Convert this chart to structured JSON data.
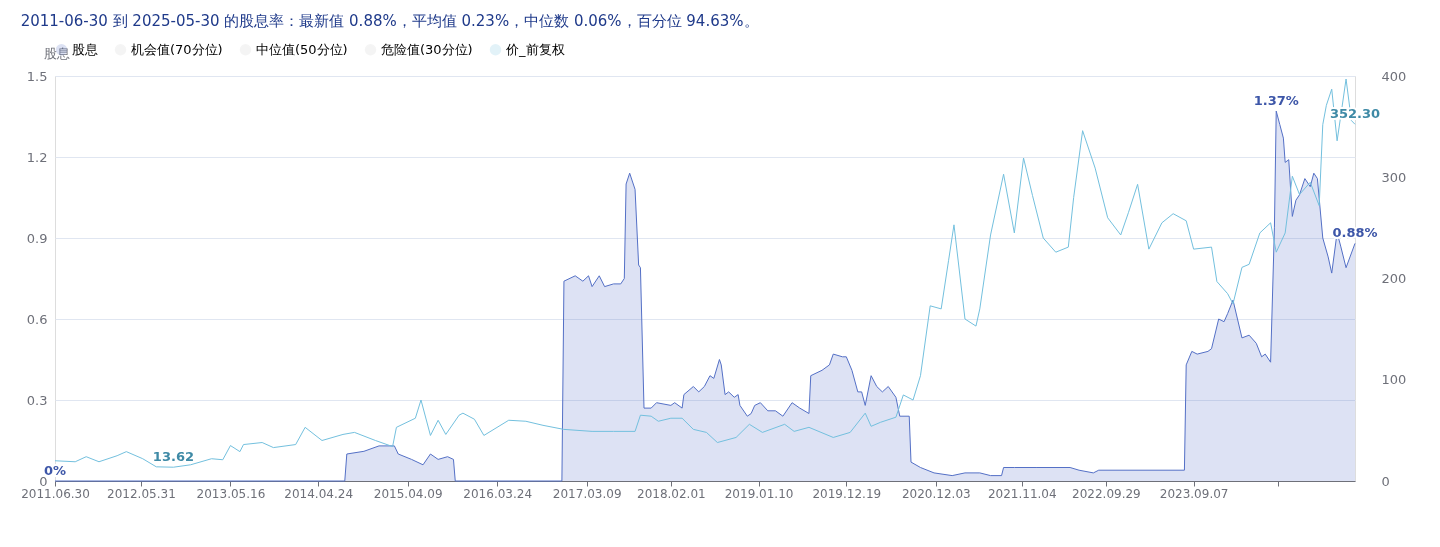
{
  "chart_data": {
    "type": "line",
    "title": "2011-06-30 到 2025-05-30 的股息率：最新值 0.88%，平均值 0.23%，中位数 0.06%，百分位 94.63%。",
    "ylabel": "股息",
    "xlim": [
      "2011-06-30",
      "2025-05-30"
    ],
    "xticks": [
      {
        "value": "2011-06-30",
        "label": "2011.06.30"
      },
      {
        "value": "2012-05-31",
        "label": "2012.05.31"
      },
      {
        "value": "2013-05-16",
        "label": "2013.05.16"
      },
      {
        "value": "2014-04-24",
        "label": "2014.04.24"
      },
      {
        "value": "2015-04-09",
        "label": "2015.04.09"
      },
      {
        "value": "2016-03-24",
        "label": "2016.03.24"
      },
      {
        "value": "2017-03-09",
        "label": "2017.03.09"
      },
      {
        "value": "2018-02-01",
        "label": "2018.02.01"
      },
      {
        "value": "2019-01-10",
        "label": "2019.01.10"
      },
      {
        "value": "2019-12-19",
        "label": "2019.12.19"
      },
      {
        "value": "2020-12-03",
        "label": "2020.12.03"
      },
      {
        "value": "2021-11-04",
        "label": "2021.11.04"
      },
      {
        "value": "2022-09-29",
        "label": "2022.09.29"
      },
      {
        "value": "2023-09-07",
        "label": "2023.09.07"
      },
      {
        "value": "2024-08-02",
        "label": null
      }
    ],
    "ylim": [
      0,
      1.5
    ],
    "yticks": [
      0,
      0.3,
      0.6,
      0.9,
      1.2,
      1.5
    ],
    "y2lim": [
      0,
      400
    ],
    "y2ticks": [
      0,
      100,
      200,
      300,
      400
    ],
    "grid": "y",
    "legend": "top",
    "series": [
      {
        "name": "股息",
        "type": "area",
        "color": "#5470c6",
        "x": [
          "2011-06-30",
          "2014-08-06",
          "2014-08-14",
          "2014-10-20",
          "2014-12-18",
          "2015-02-16",
          "2015-03-03",
          "2015-04-24",
          "2015-06-08",
          "2015-07-07",
          "2015-08-06",
          "2015-09-12",
          "2015-10-05",
          "2015-10-12",
          "2016-12-02",
          "2016-12-10",
          "2017-01-23",
          "2017-02-22",
          "2017-03-16",
          "2017-03-30",
          "2017-04-27",
          "2017-05-18",
          "2017-06-22",
          "2017-07-20",
          "2017-08-03",
          "2017-08-10",
          "2017-08-24",
          "2017-09-14",
          "2017-09-28",
          "2017-10-05",
          "2017-10-19",
          "2017-11-16",
          "2017-12-07",
          "2018-02-01",
          "2018-02-16",
          "2018-03-17",
          "2018-03-24",
          "2018-04-30",
          "2018-05-21",
          "2018-06-12",
          "2018-07-04",
          "2018-07-19",
          "2018-08-10",
          "2018-08-17",
          "2018-09-01",
          "2018-09-15",
          "2018-10-07",
          "2018-10-22",
          "2018-10-29",
          "2018-11-27",
          "2018-12-12",
          "2018-12-26",
          "2019-01-17",
          "2019-02-15",
          "2019-03-17",
          "2019-04-15",
          "2019-05-21",
          "2019-06-20",
          "2019-07-26",
          "2019-08-02",
          "2019-09-15",
          "2019-10-14",
          "2019-10-29",
          "2019-12-04",
          "2019-12-19",
          "2020-01-10",
          "2020-02-02",
          "2020-02-17",
          "2020-03-02",
          "2020-03-25",
          "2020-04-16",
          "2020-05-08",
          "2020-05-31",
          "2020-06-30",
          "2020-07-15",
          "2020-08-21",
          "2020-08-28",
          "2020-10-04",
          "2020-11-26",
          "2021-02-05",
          "2021-03-27",
          "2021-05-24",
          "2021-07-05",
          "2021-08-17",
          "2021-08-25",
          "2021-10-06",
          "2021-12-30",
          "2022-05-12",
          "2022-06-16",
          "2022-08-11",
          "2022-09-01",
          "2023-08-02",
          "2023-08-09",
          "2023-08-31",
          "2023-09-21",
          "2023-11-02",
          "2023-11-16",
          "2023-12-14",
          "2024-01-04",
          "2024-01-18",
          "2024-02-08",
          "2024-03-14",
          "2024-04-11",
          "2024-05-09",
          "2024-05-30",
          "2024-06-13",
          "2024-07-04",
          "2024-07-19",
          "2024-07-26",
          "2024-08-09",
          "2024-08-23",
          "2024-08-30",
          "2024-09-13",
          "2024-09-27",
          "2024-10-11",
          "2024-10-25",
          "2024-11-15",
          "2024-12-06",
          "2024-12-20",
          "2025-01-03",
          "2025-01-24",
          "2025-02-14",
          "2025-02-28",
          "2025-03-21",
          "2025-04-04",
          "2025-04-25",
          "2025-05-30"
        ],
        "values": [
          0,
          0,
          0.1,
          0.11,
          0.13,
          0.13,
          0.1,
          0.08,
          0.06,
          0.1,
          0.08,
          0.09,
          0.08,
          0,
          0,
          0.74,
          0.76,
          0.74,
          0.76,
          0.72,
          0.76,
          0.72,
          0.73,
          0.73,
          0.75,
          1.1,
          1.14,
          1.08,
          0.8,
          0.79,
          0.27,
          0.27,
          0.29,
          0.28,
          0.29,
          0.27,
          0.32,
          0.35,
          0.33,
          0.35,
          0.39,
          0.38,
          0.45,
          0.43,
          0.32,
          0.33,
          0.31,
          0.32,
          0.28,
          0.24,
          0.25,
          0.28,
          0.29,
          0.26,
          0.26,
          0.24,
          0.29,
          0.27,
          0.25,
          0.39,
          0.41,
          0.43,
          0.47,
          0.46,
          0.46,
          0.41,
          0.33,
          0.33,
          0.28,
          0.39,
          0.35,
          0.33,
          0.35,
          0.31,
          0.24,
          0.24,
          0.07,
          0.05,
          0.03,
          0.02,
          0.03,
          0.03,
          0.02,
          0.02,
          0.05,
          0.05,
          0.05,
          0.05,
          0.04,
          0.03,
          0.04,
          0.04,
          0.43,
          0.48,
          0.47,
          0.48,
          0.49,
          0.6,
          0.59,
          0.62,
          0.67,
          0.53,
          0.54,
          0.51,
          0.46,
          0.47,
          0.44,
          0.94,
          1.37,
          1.32,
          1.27,
          1.18,
          1.19,
          0.98,
          1.04,
          1.06,
          1.12,
          1.09,
          1.14,
          1.12,
          0.9,
          0.83,
          0.77,
          0.92,
          0.87,
          0.79,
          0.88
        ],
        "value_labels": [
          "0%",
          null,
          null,
          null,
          null,
          null,
          null,
          null,
          null,
          null,
          null,
          null,
          null,
          null,
          null,
          null,
          null,
          null,
          null,
          null,
          null,
          null,
          null,
          null,
          null,
          null,
          null,
          null,
          null,
          null,
          null,
          null,
          null,
          null,
          null,
          null,
          null,
          null,
          null,
          null,
          null,
          null,
          null,
          null,
          null,
          null,
          null,
          null,
          null,
          null,
          null,
          null,
          null,
          null,
          null,
          null,
          null,
          null,
          null,
          null,
          null,
          null,
          null,
          null,
          null,
          null,
          null,
          null,
          null,
          null,
          null,
          null,
          null,
          null,
          null,
          null,
          null,
          null,
          null,
          null,
          null,
          null,
          null,
          null,
          null,
          null,
          null,
          null,
          null,
          null,
          null,
          null,
          null,
          null,
          null,
          null,
          null,
          null,
          null,
          null,
          null,
          null,
          null,
          null,
          null,
          null,
          null,
          null,
          "1.37%",
          null,
          null,
          null,
          null,
          null,
          null,
          null,
          null,
          null,
          null,
          null,
          null,
          null,
          null,
          null,
          null,
          null,
          "0.88%"
        ]
      },
      {
        "name": "机会值(70分位)",
        "color": "#cccccc"
      },
      {
        "name": "中位值(50分位)",
        "color": "#cccccc"
      },
      {
        "name": "危险值(30分位)",
        "color": "#cccccc"
      },
      {
        "name": "价_前复权",
        "axis": "y2",
        "color": "#73c0de",
        "x": [
          "2011-06-30",
          "2011-09-17",
          "2011-10-30",
          "2011-12-19",
          "2012-02-28",
          "2012-04-04",
          "2012-06-07",
          "2012-07-30",
          "2012-10-05",
          "2012-12-11",
          "2013-03-03",
          "2013-04-16",
          "2013-05-16",
          "2013-06-22",
          "2013-07-06",
          "2013-09-17",
          "2013-10-31",
          "2014-01-26",
          "2014-03-04",
          "2014-05-09",
          "2014-07-30",
          "2014-09-13",
          "2014-12-04",
          "2015-02-09",
          "2015-02-24",
          "2015-05-09",
          "2015-05-31",
          "2015-07-07",
          "2015-08-06",
          "2015-09-05",
          "2015-10-27",
          "2015-11-11",
          "2015-12-26",
          "2016-02-01",
          "2016-05-08",
          "2016-07-14",
          "2016-09-19",
          "2016-12-09",
          "2017-03-30",
          "2017-06-22",
          "2017-09-14",
          "2017-10-05",
          "2017-11-16",
          "2017-12-14",
          "2018-02-01",
          "2018-03-17",
          "2018-04-30",
          "2018-06-20",
          "2018-08-02",
          "2018-10-14",
          "2018-12-05",
          "2019-01-25",
          "2019-04-22",
          "2019-05-29",
          "2019-07-26",
          "2019-10-29",
          "2020-01-03",
          "2020-03-02",
          "2020-03-25",
          "2020-05-01",
          "2020-06-30",
          "2020-07-29",
          "2020-09-05",
          "2020-10-04",
          "2020-11-11",
          "2020-12-24",
          "2021-01-22",
          "2021-02-12",
          "2021-03-27",
          "2021-05-09",
          "2021-05-24",
          "2021-07-05",
          "2021-08-25",
          "2021-10-06",
          "2021-11-11",
          "2021-12-16",
          "2022-01-27",
          "2022-03-17",
          "2022-05-05",
          "2022-05-26",
          "2022-06-30",
          "2022-08-18",
          "2022-10-06",
          "2022-11-26",
          "2022-12-26",
          "2023-01-31",
          "2023-03-16",
          "2023-05-06",
          "2023-06-19",
          "2023-08-09",
          "2023-09-07",
          "2023-11-16",
          "2023-12-07",
          "2024-01-18",
          "2024-02-08",
          "2024-03-14",
          "2024-04-11",
          "2024-05-23",
          "2024-07-04",
          "2024-07-26",
          "2024-08-30",
          "2024-09-27",
          "2024-10-25",
          "2024-12-06",
          "2025-01-10",
          "2025-01-24",
          "2025-02-07",
          "2025-02-28",
          "2025-03-21",
          "2025-04-04",
          "2025-04-25",
          "2025-05-16",
          "2025-05-30"
        ],
        "values": [
          20,
          19,
          24,
          19,
          25,
          29,
          22,
          14,
          13.62,
          16,
          22,
          21,
          35,
          29,
          36,
          38,
          33,
          36,
          53,
          40,
          46,
          48,
          40,
          34,
          53,
          62,
          80,
          45,
          60,
          46,
          65,
          67,
          61,
          45,
          60,
          59,
          55,
          51,
          49,
          49,
          49,
          65,
          64,
          59,
          62,
          62,
          51,
          48,
          38,
          43,
          56,
          48,
          56,
          49,
          53,
          43,
          48,
          67,
          54,
          58,
          63,
          85,
          80,
          104,
          173,
          170,
          218,
          253,
          160,
          153,
          170,
          243,
          303,
          245,
          319,
          282,
          240,
          226,
          231,
          280,
          346,
          309,
          260,
          243,
          265,
          293,
          229,
          255,
          264,
          257,
          229,
          231,
          197,
          185,
          175,
          211,
          214,
          245,
          255,
          226,
          245,
          301,
          283,
          295,
          272,
          352,
          371,
          387,
          336,
          360,
          397,
          356,
          352.3
        ],
        "value_labels": [
          null,
          null,
          null,
          null,
          null,
          null,
          null,
          null,
          "13.62",
          null,
          null,
          null,
          null,
          null,
          null,
          null,
          null,
          null,
          null,
          null,
          null,
          null,
          null,
          null,
          null,
          null,
          null,
          null,
          null,
          null,
          null,
          null,
          null,
          null,
          null,
          null,
          null,
          null,
          null,
          null,
          null,
          null,
          null,
          null,
          null,
          null,
          null,
          null,
          null,
          null,
          null,
          null,
          null,
          null,
          null,
          null,
          null,
          null,
          null,
          null,
          null,
          null,
          null,
          null,
          null,
          null,
          null,
          null,
          null,
          null,
          null,
          null,
          null,
          null,
          null,
          null,
          null,
          null,
          null,
          null,
          null,
          null,
          null,
          null,
          null,
          null,
          null,
          null,
          null,
          null,
          null,
          null,
          null,
          null,
          null,
          null,
          null,
          null,
          null,
          null,
          null,
          null,
          null,
          null,
          null,
          null,
          null,
          null,
          null,
          null,
          null,
          null,
          "352.30"
        ]
      }
    ]
  }
}
